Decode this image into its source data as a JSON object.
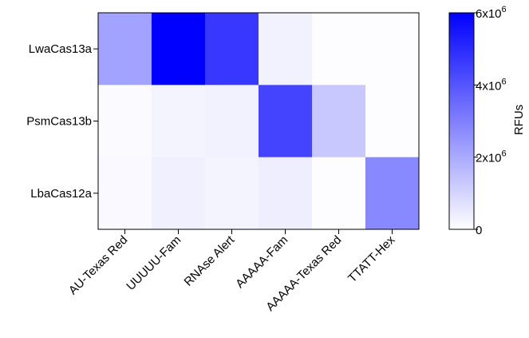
{
  "chart_data": {
    "type": "heatmap",
    "rows": [
      "LwaCas13a",
      "PsmCas13b",
      "LbaCas12a"
    ],
    "columns": [
      "AU-Texas Red",
      "UUUUU-Fam",
      "RNAse Alert",
      "AAAAA-Fam",
      "AAAAA-Texas Red",
      "TTATT-Hex"
    ],
    "values": [
      [
        2200000,
        6000000,
        4700000,
        300000,
        50000,
        50000
      ],
      [
        100000,
        250000,
        300000,
        4400000,
        1300000,
        50000
      ],
      [
        150000,
        350000,
        250000,
        400000,
        50000,
        2800000
      ]
    ],
    "colorbar": {
      "label": "RFUs",
      "min": 0,
      "max": 6000000,
      "ticks": [
        {
          "value": 0,
          "label": "0"
        },
        {
          "value": 2000000,
          "label": "2x10",
          "exp": "6"
        },
        {
          "value": 4000000,
          "label": "4x10",
          "exp": "6"
        },
        {
          "value": 6000000,
          "label": "6x10",
          "exp": "6"
        }
      ],
      "color_low": "#ffffff",
      "color_high": "#0000ff"
    }
  }
}
